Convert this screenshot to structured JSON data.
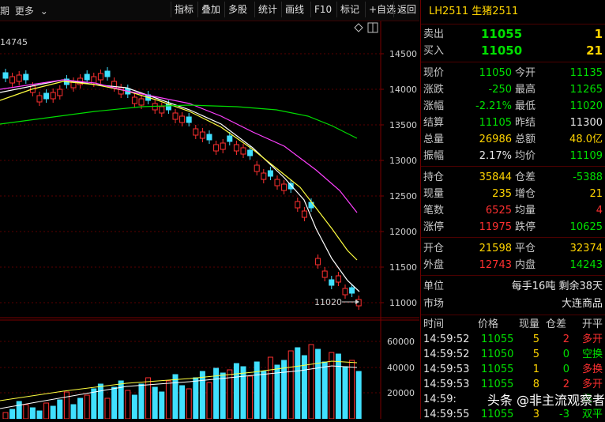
{
  "toolbar": {
    "left_prefix": "期",
    "more": "更多",
    "chevron": "chevron-down",
    "buttons": [
      "指标",
      "叠加",
      "多股",
      "统计",
      "画线",
      "F10",
      "标记",
      "+自选",
      "返回"
    ]
  },
  "chart": {
    "top_label": "14745",
    "price_ticks": [
      "14500",
      "14000",
      "13500",
      "13000",
      "12500",
      "12000",
      "11500",
      "11000"
    ],
    "low_marker": "11020",
    "volume_ticks": [
      "60000",
      "40000",
      "20000"
    ],
    "up_color": "#ff3030",
    "down_color": "#40e0ff",
    "ma_colors": [
      "#ffffff",
      "#ffff40",
      "#ff40ff",
      "#00dd00"
    ],
    "diamond_icon": "diamond",
    "toggle_icon": "split-panel"
  },
  "panel": {
    "title": "LH2511 生猪2511",
    "sell": {
      "label": "卖出",
      "price": "11055",
      "qty": "1"
    },
    "buy": {
      "label": "买入",
      "price": "11050",
      "qty": "21"
    },
    "stats": [
      [
        {
          "k": "现价",
          "v": "11050",
          "c": "grn"
        },
        {
          "k": "今开",
          "v": "11135",
          "c": "grn"
        }
      ],
      [
        {
          "k": "涨跌",
          "v": "-250",
          "c": "grn"
        },
        {
          "k": "最高",
          "v": "11265",
          "c": "grn"
        }
      ],
      [
        {
          "k": "涨幅",
          "v": "-2.21%",
          "c": "grn"
        },
        {
          "k": "最低",
          "v": "11020",
          "c": "grn"
        }
      ],
      [
        {
          "k": "结算",
          "v": "11105",
          "c": "grn"
        },
        {
          "k": "昨结",
          "v": "11300",
          "c": "wht"
        }
      ],
      [
        {
          "k": "总量",
          "v": "26986",
          "c": "yel"
        },
        {
          "k": "总额",
          "v": "48.0亿",
          "c": "yel"
        }
      ],
      [
        {
          "k": "振幅",
          "v": "2.17%",
          "c": "wht"
        },
        {
          "k": "均价",
          "v": "11109",
          "c": "grn"
        }
      ]
    ],
    "stats2": [
      [
        {
          "k": "持仓",
          "v": "35844",
          "c": "yel"
        },
        {
          "k": "仓差",
          "v": "-5388",
          "c": "grn"
        }
      ],
      [
        {
          "k": "现量",
          "v": "235",
          "c": "yel"
        },
        {
          "k": "增仓",
          "v": "21",
          "c": "yel"
        }
      ],
      [
        {
          "k": "笔数",
          "v": "6525",
          "c": "red"
        },
        {
          "k": "均量",
          "v": "4",
          "c": "red"
        }
      ],
      [
        {
          "k": "涨停",
          "v": "11975",
          "c": "red"
        },
        {
          "k": "跌停",
          "v": "10625",
          "c": "grn"
        }
      ]
    ],
    "stats3": [
      [
        {
          "k": "开仓",
          "v": "21598",
          "c": "yel"
        },
        {
          "k": "平仓",
          "v": "32374",
          "c": "yel"
        }
      ],
      [
        {
          "k": "外盘",
          "v": "12743",
          "c": "red"
        },
        {
          "k": "内盘",
          "v": "14243",
          "c": "grn"
        }
      ]
    ],
    "unit": {
      "label": "单位",
      "value": "每手16吨  剩余38天"
    },
    "market": {
      "label": "市场",
      "value": "大连商品"
    },
    "ticks_header": [
      "时间",
      "价格",
      "现量",
      "仓差",
      "开平"
    ],
    "ticks": [
      {
        "time": "14:59:52",
        "price": "11055",
        "vol": "5",
        "oi": "2",
        "type": "多开",
        "tc": "red"
      },
      {
        "time": "14:59:52",
        "price": "11050",
        "vol": "5",
        "oi": "0",
        "type": "空换",
        "tc": "grn"
      },
      {
        "time": "14:59:53",
        "price": "11055",
        "vol": "1",
        "oi": "0",
        "type": "多换",
        "tc": "red"
      },
      {
        "time": "14:59:53",
        "price": "11055",
        "vol": "8",
        "oi": "2",
        "type": "多开",
        "tc": "red"
      },
      {
        "time": "14:59:",
        "price": "",
        "vol": "",
        "oi": "",
        "type": "换",
        "tc": "grn"
      },
      {
        "time": "14:59:55",
        "price": "11055",
        "vol": "3",
        "oi": "-3",
        "type": "双平",
        "tc": "grn"
      }
    ]
  },
  "watermark": "头条 @非主流观察者"
}
